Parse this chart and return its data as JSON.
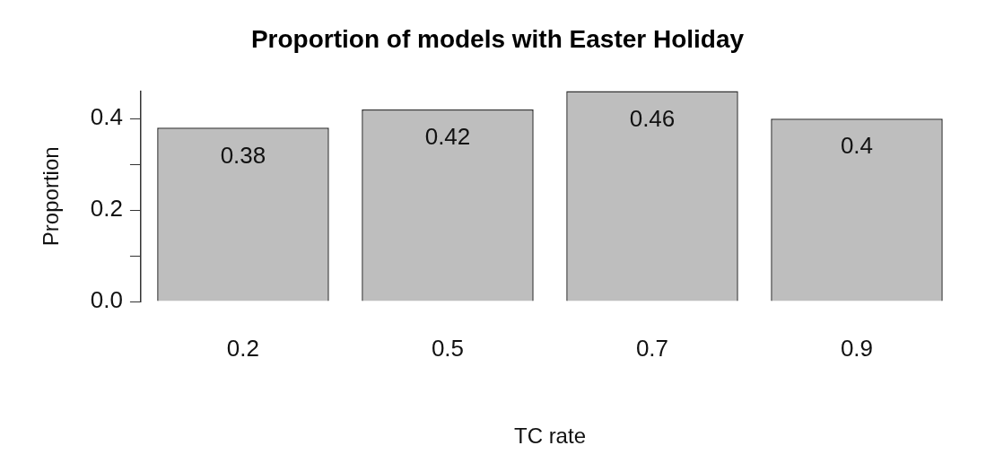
{
  "chart_data": {
    "type": "bar",
    "title": "Proportion of models with Easter Holiday",
    "xlabel": "TC rate",
    "ylabel": "Proportion",
    "categories": [
      "0.2",
      "0.5",
      "0.7",
      "0.9"
    ],
    "values": [
      0.38,
      0.42,
      0.46,
      0.4
    ],
    "color": "#bebebe",
    "ylim": [
      0,
      0.46
    ],
    "yticks": [
      {
        "value": 0,
        "label": "0.0"
      },
      {
        "value": 0.1,
        "label": null
      },
      {
        "value": 0.2,
        "label": "0.2"
      },
      {
        "value": 0.3,
        "label": null
      },
      {
        "value": 0.4,
        "label": "0.4"
      }
    ],
    "data_labels": true,
    "grid": false,
    "legend": false
  }
}
